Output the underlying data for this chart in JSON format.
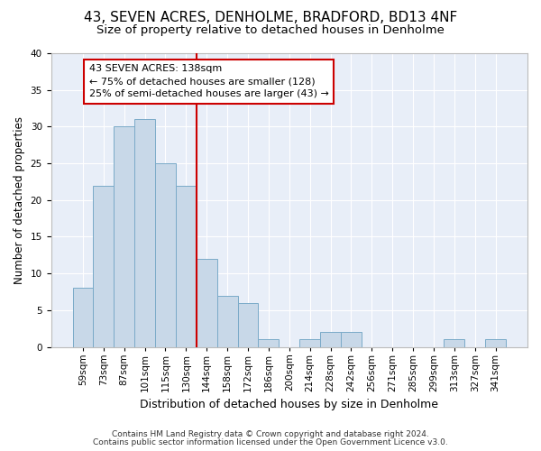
{
  "title1": "43, SEVEN ACRES, DENHOLME, BRADFORD, BD13 4NF",
  "title2": "Size of property relative to detached houses in Denholme",
  "xlabel": "Distribution of detached houses by size in Denholme",
  "ylabel": "Number of detached properties",
  "categories": [
    "59sqm",
    "73sqm",
    "87sqm",
    "101sqm",
    "115sqm",
    "130sqm",
    "144sqm",
    "158sqm",
    "172sqm",
    "186sqm",
    "200sqm",
    "214sqm",
    "228sqm",
    "242sqm",
    "256sqm",
    "271sqm",
    "285sqm",
    "299sqm",
    "313sqm",
    "327sqm",
    "341sqm"
  ],
  "values": [
    8,
    22,
    30,
    31,
    25,
    22,
    12,
    7,
    6,
    1,
    0,
    1,
    2,
    2,
    0,
    0,
    0,
    0,
    1,
    0,
    1
  ],
  "bar_color": "#c8d8e8",
  "bar_edge_color": "#7aaac8",
  "vline_color": "#cc0000",
  "annotation_text": "43 SEVEN ACRES: 138sqm\n← 75% of detached houses are smaller (128)\n25% of semi-detached houses are larger (43) →",
  "annotation_box_color": "#ffffff",
  "annotation_box_edge_color": "#cc0000",
  "ylim": [
    0,
    40
  ],
  "yticks": [
    0,
    5,
    10,
    15,
    20,
    25,
    30,
    35,
    40
  ],
  "background_color": "#e8eef8",
  "footer1": "Contains HM Land Registry data © Crown copyright and database right 2024.",
  "footer2": "Contains public sector information licensed under the Open Government Licence v3.0.",
  "title1_fontsize": 11,
  "title2_fontsize": 9.5,
  "xlabel_fontsize": 9,
  "ylabel_fontsize": 8.5,
  "tick_fontsize": 7.5,
  "annotation_fontsize": 8,
  "footer_fontsize": 6.5
}
